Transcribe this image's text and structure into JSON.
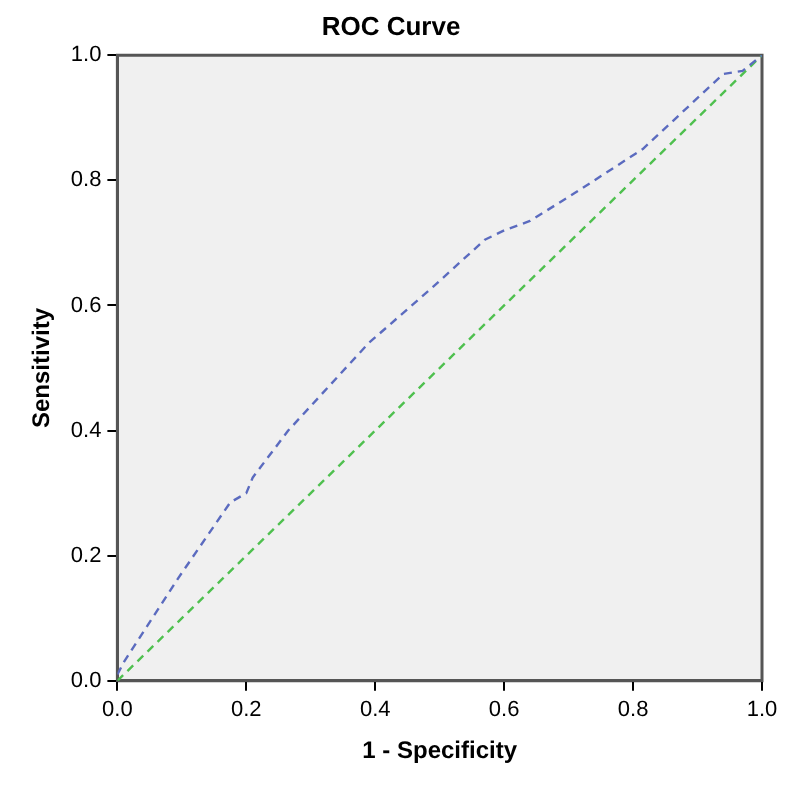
{
  "chart_data": {
    "type": "line",
    "title": "ROC Curve",
    "xlabel": "1 - Specificity",
    "ylabel": "Sensitivity",
    "xlim": [
      0,
      1
    ],
    "ylim": [
      0,
      1
    ],
    "xticks": [
      {
        "value": 0,
        "label": "0.0"
      },
      {
        "value": 0.2,
        "label": "0.2"
      },
      {
        "value": 0.4,
        "label": "0.4"
      },
      {
        "value": 0.6,
        "label": "0.6"
      },
      {
        "value": 0.8,
        "label": "0.8"
      },
      {
        "value": 1,
        "label": "1.0"
      }
    ],
    "yticks": [
      {
        "value": 0,
        "label": "0.0"
      },
      {
        "value": 0.2,
        "label": "0.2"
      },
      {
        "value": 0.4,
        "label": "0.4"
      },
      {
        "value": 0.6,
        "label": "0.6"
      },
      {
        "value": 0.8,
        "label": "0.8"
      },
      {
        "value": 1,
        "label": "1.0"
      }
    ],
    "grid": false,
    "legend": false,
    "marker": "none",
    "line_style": "dashed",
    "series": [
      {
        "color": "#5b6bbf",
        "x": [
          0,
          0.01,
          0.095,
          0.175,
          0.2,
          0.21,
          0.265,
          0.39,
          0.49,
          0.57,
          0.6,
          0.64,
          0.71,
          0.815,
          0.94,
          0.97,
          1
        ],
        "values": [
          0.01,
          0.03,
          0.165,
          0.285,
          0.3,
          0.325,
          0.4,
          0.54,
          0.63,
          0.705,
          0.72,
          0.735,
          0.78,
          0.85,
          0.97,
          0.975,
          1
        ]
      },
      {
        "color": "#4fc04f",
        "x": [
          0,
          1
        ],
        "values": [
          0,
          1
        ]
      }
    ]
  }
}
